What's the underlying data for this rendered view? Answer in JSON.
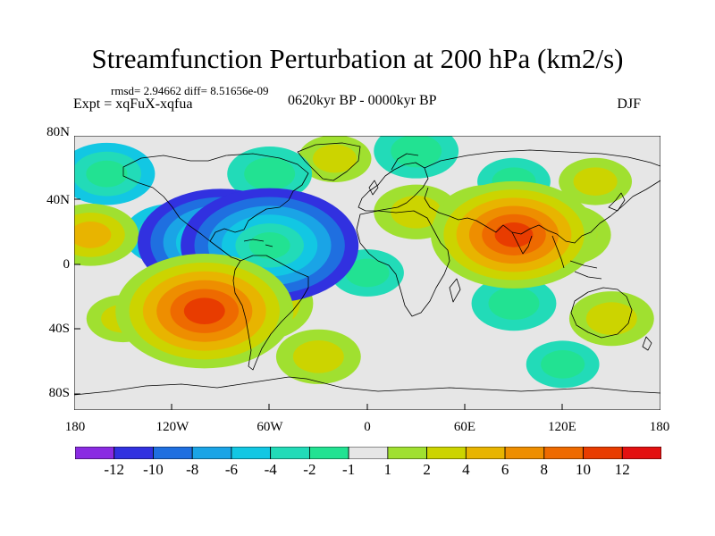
{
  "title": "Streamfunction Perturbation at 200 hPa (km2/s)",
  "stats": "rmsd= 2.94662  diff= 8.51656e-09",
  "left_label": "Expt = xqFuX-xqfua",
  "center_label": "0620kyr BP - 0000kyr BP",
  "right_label": "DJF",
  "lat_labels": [
    "80N",
    "40N",
    "0",
    "40S",
    "80S"
  ],
  "lon_labels": [
    "180",
    "120W",
    "60W",
    "0",
    "60E",
    "120E",
    "180"
  ],
  "colorbar": {
    "labels": [
      "-12",
      "-10",
      "-8",
      "-6",
      "-4",
      "-2",
      "-1",
      "1",
      "2",
      "4",
      "6",
      "8",
      "10",
      "12"
    ],
    "colors": [
      "#8a2be2",
      "#3131e0",
      "#1f6fe0",
      "#1aa4e6",
      "#12c7e3",
      "#22dbb8",
      "#22e292",
      "#e6e6e6",
      "#a0e030",
      "#ccd400",
      "#e8b400",
      "#ee8e00",
      "#ee6a00",
      "#e83c00",
      "#e31010"
    ]
  },
  "map_data": {
    "lon_range": [
      -180,
      180
    ],
    "lat_range": [
      -90,
      90
    ],
    "anomalies": [
      {
        "lon": -90,
        "lat": 20,
        "value": -10
      },
      {
        "lon": -60,
        "lat": 18,
        "value": -11
      },
      {
        "lon": -120,
        "lat": 25,
        "value": -4
      },
      {
        "lon": -100,
        "lat": -25,
        "value": 11
      },
      {
        "lon": -70,
        "lat": -20,
        "value": 6
      },
      {
        "lon": 90,
        "lat": 25,
        "value": 10
      },
      {
        "lon": 75,
        "lat": 35,
        "value": 5
      },
      {
        "lon": 120,
        "lat": 25,
        "value": 4
      },
      {
        "lon": 30,
        "lat": 40,
        "value": 3
      },
      {
        "lon": -20,
        "lat": 75,
        "value": 2
      },
      {
        "lon": 30,
        "lat": 80,
        "value": -3
      },
      {
        "lon": -160,
        "lat": 65,
        "value": -4
      },
      {
        "lon": -170,
        "lat": 25,
        "value": 4
      },
      {
        "lon": -150,
        "lat": -30,
        "value": 2
      },
      {
        "lon": -30,
        "lat": -55,
        "value": 3
      },
      {
        "lon": 90,
        "lat": -20,
        "value": -3
      },
      {
        "lon": 0,
        "lat": 0,
        "value": -2
      },
      {
        "lon": 150,
        "lat": -30,
        "value": 3
      },
      {
        "lon": -60,
        "lat": 65,
        "value": -3
      },
      {
        "lon": 90,
        "lat": 60,
        "value": -2
      },
      {
        "lon": 140,
        "lat": 60,
        "value": 2
      },
      {
        "lon": 120,
        "lat": -60,
        "value": -2
      }
    ]
  }
}
